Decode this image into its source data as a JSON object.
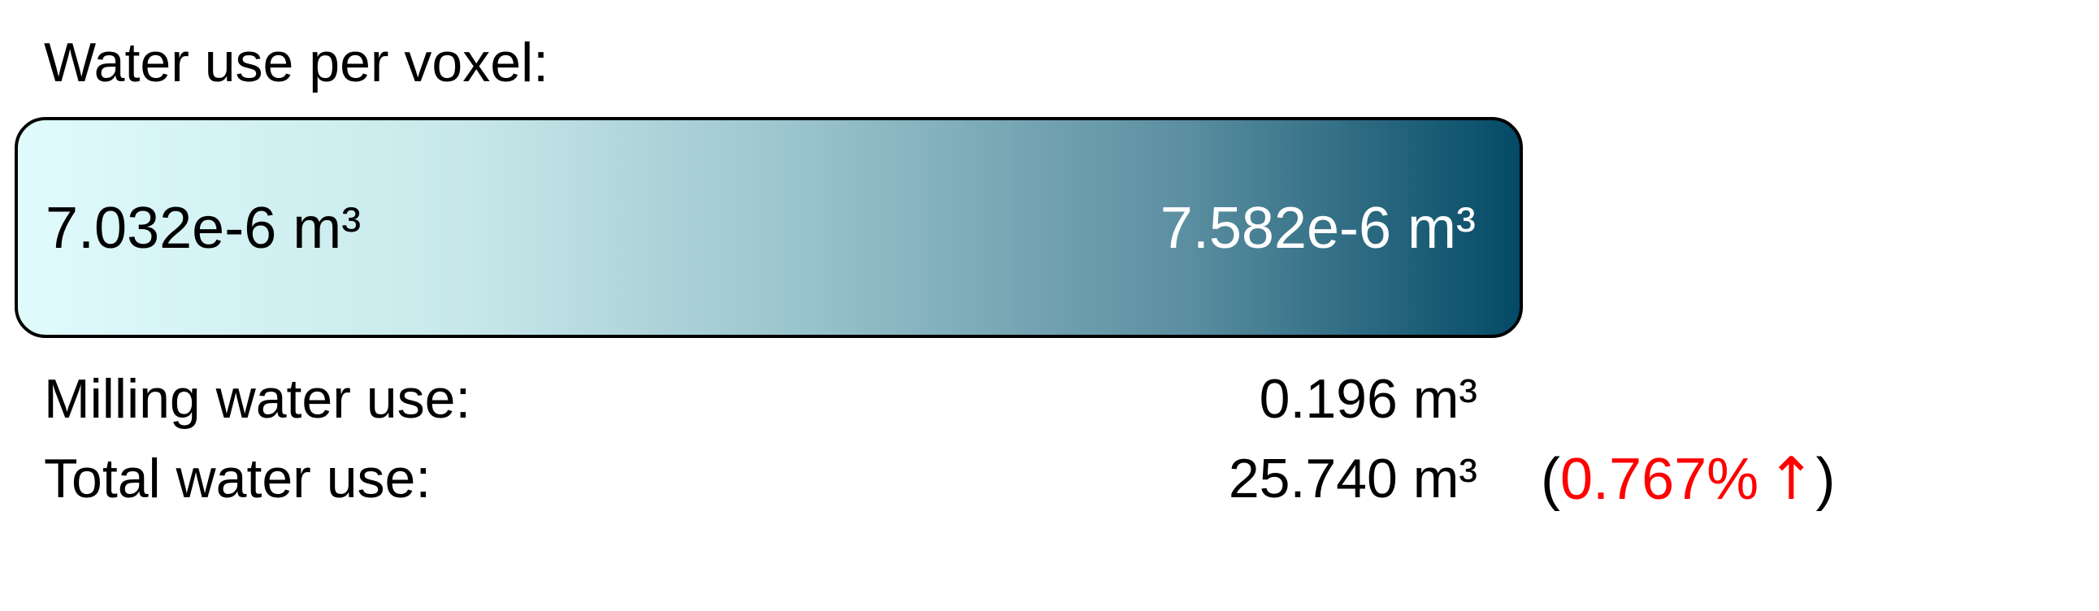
{
  "title": "Water use per voxel:",
  "colorbar": {
    "min_label": "7.032e-6 m³",
    "max_label": "7.582e-6 m³",
    "gradient_start_color": "#e0fbfc",
    "gradient_end_color": "#044a66"
  },
  "stats": {
    "milling": {
      "label": "Milling water use:",
      "value": "0.196 m³"
    },
    "total": {
      "label": "Total water use:",
      "value": "25.740 m³",
      "change": {
        "open_paren": "(",
        "percent": "0.767%",
        "arrow": "↑",
        "close_paren": ")",
        "color": "#ff0000",
        "direction_icon": "arrow-up-icon"
      }
    }
  }
}
